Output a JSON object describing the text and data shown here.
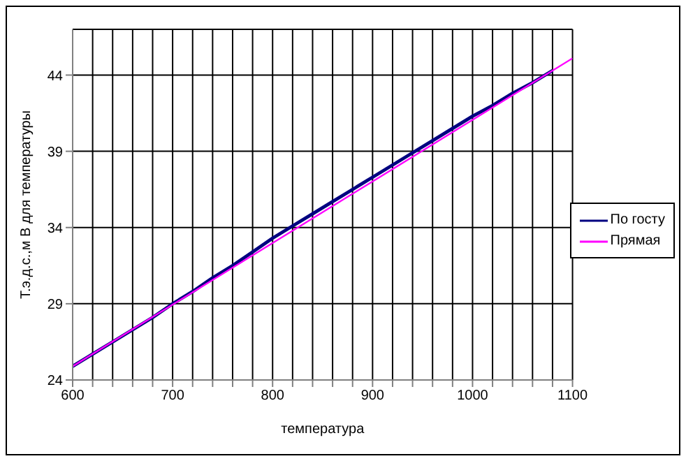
{
  "chart_data": {
    "type": "line",
    "xlabel": "температура",
    "ylabel": "Т.э.д.с.,м В для температуры",
    "xlim": [
      600,
      1100
    ],
    "xticks": [
      600,
      {
        "value": 620,
        "label": null
      },
      {
        "value": 640,
        "label": null
      },
      {
        "value": 660,
        "label": null
      },
      {
        "value": 680,
        "label": null
      },
      700,
      {
        "value": 720,
        "label": null
      },
      {
        "value": 740,
        "label": null
      },
      {
        "value": 760,
        "label": null
      },
      {
        "value": 780,
        "label": null
      },
      800,
      {
        "value": 820,
        "label": null
      },
      {
        "value": 840,
        "label": null
      },
      {
        "value": 860,
        "label": null
      },
      {
        "value": 880,
        "label": null
      },
      900,
      {
        "value": 920,
        "label": null
      },
      {
        "value": 940,
        "label": null
      },
      {
        "value": 960,
        "label": null
      },
      {
        "value": 980,
        "label": null
      },
      1000,
      {
        "value": 1020,
        "label": null
      },
      {
        "value": 1040,
        "label": null
      },
      {
        "value": 1060,
        "label": null
      },
      {
        "value": 1080,
        "label": null
      },
      1100
    ],
    "ylim": [
      24,
      47
    ],
    "yticks": [
      24,
      29,
      34,
      39,
      44
    ],
    "grid": true,
    "legend": "right",
    "marker": "none",
    "line_style": "solid",
    "series": [
      {
        "name": "По госту",
        "color": "#000080",
        "x": [
          600,
          620,
          640,
          660,
          680,
          700,
          720,
          740,
          760,
          780,
          800,
          820,
          840,
          860,
          880,
          900,
          920,
          940,
          960,
          980,
          1000,
          1020,
          1040,
          1060,
          1080
        ],
        "values": [
          24.9,
          25.7,
          26.5,
          27.3,
          28.1,
          29.0,
          29.8,
          30.7,
          31.5,
          32.4,
          33.3,
          34.1,
          34.9,
          35.7,
          36.5,
          37.3,
          38.1,
          38.9,
          39.7,
          40.5,
          41.3,
          42.0,
          42.8,
          43.5,
          44.3
        ]
      },
      {
        "name": "Прямая",
        "color": "#ff00ff",
        "x": [
          600,
          1100
        ],
        "values": [
          24.9,
          45.1
        ]
      }
    ]
  }
}
